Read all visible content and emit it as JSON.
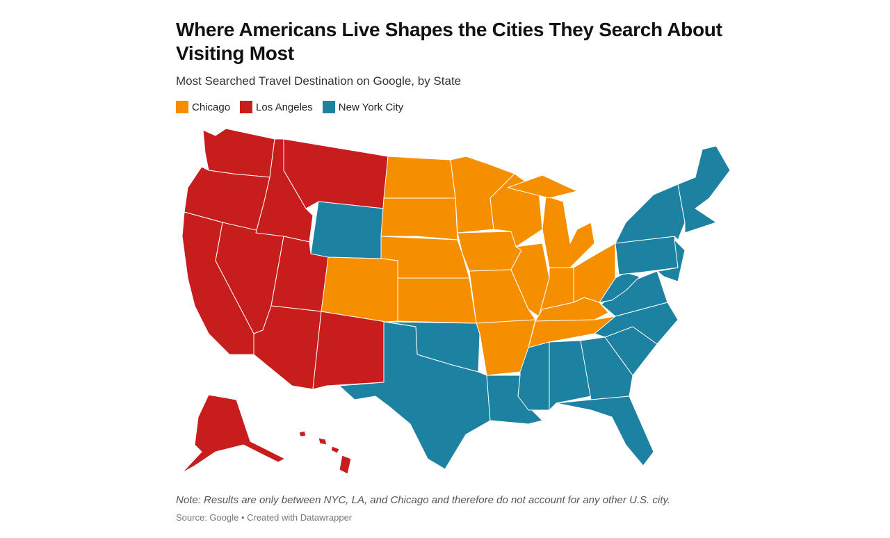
{
  "header": {
    "title": "Where Americans Live Shapes the Cities They Search About Visiting Most",
    "subtitle": "Most Searched Travel Destination on Google, by State"
  },
  "legend": {
    "items": [
      {
        "label": "Chicago",
        "color": "#f68f00"
      },
      {
        "label": "Los Angeles",
        "color": "#c71e1d"
      },
      {
        "label": "New York City",
        "color": "#1d81a2"
      }
    ]
  },
  "footer": {
    "note": "Note: Results are only between NYC, LA, and Chicago and therefore do not account for any other U.S. city.",
    "source": "Source: Google • Created with Datawrapper"
  }
}
